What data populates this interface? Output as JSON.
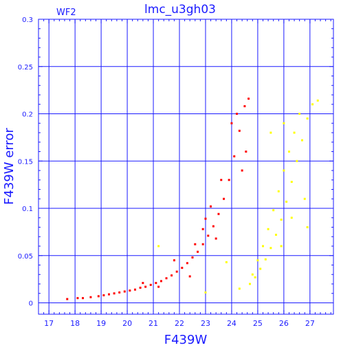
{
  "chart_data": {
    "type": "scatter",
    "title": "lmc_u3gh03",
    "panel_label": "WF2",
    "xlabel": "F439W",
    "ylabel": "F439W error",
    "xlim": [
      16.6,
      27.9
    ],
    "ylim": [
      -0.012,
      0.3
    ],
    "xticks": [
      17,
      18,
      19,
      20,
      21,
      22,
      23,
      24,
      25,
      26,
      27
    ],
    "xtick_labels": [
      "17",
      "18",
      "19",
      "20",
      "21",
      "22",
      "23",
      "24",
      "25",
      "26",
      "27"
    ],
    "yticks": [
      0,
      0.05,
      0.1,
      0.15,
      0.2,
      0.25,
      0.3
    ],
    "ytick_labels": [
      "0",
      "0.05",
      "0.1",
      "0.15",
      "0.2",
      "0.25",
      "0.3"
    ],
    "grid": true,
    "legend": "none",
    "colors": {
      "frame": "#1a1aff",
      "grid": "#1a1aff",
      "red_series": "#ff0000",
      "yellow_series": "#ffff00"
    },
    "series": [
      {
        "color_key": "red_series",
        "points": [
          [
            17.7,
            0.004
          ],
          [
            18.1,
            0.005
          ],
          [
            18.3,
            0.005
          ],
          [
            18.6,
            0.006
          ],
          [
            18.9,
            0.007
          ],
          [
            19.1,
            0.008
          ],
          [
            19.3,
            0.009
          ],
          [
            19.5,
            0.01
          ],
          [
            19.7,
            0.011
          ],
          [
            19.9,
            0.012
          ],
          [
            20.1,
            0.013
          ],
          [
            20.3,
            0.014
          ],
          [
            20.5,
            0.016
          ],
          [
            20.7,
            0.017
          ],
          [
            20.9,
            0.019
          ],
          [
            21.1,
            0.021
          ],
          [
            21.3,
            0.023
          ],
          [
            21.5,
            0.026
          ],
          [
            21.7,
            0.029
          ],
          [
            21.9,
            0.033
          ],
          [
            22.1,
            0.037
          ],
          [
            22.3,
            0.042
          ],
          [
            22.5,
            0.048
          ],
          [
            22.7,
            0.054
          ],
          [
            22.9,
            0.062
          ],
          [
            23.1,
            0.071
          ],
          [
            23.3,
            0.081
          ],
          [
            23.5,
            0.094
          ],
          [
            23.7,
            0.11
          ],
          [
            23.9,
            0.13
          ],
          [
            24.1,
            0.155
          ],
          [
            24.3,
            0.182
          ],
          [
            24.5,
            0.208
          ],
          [
            24.65,
            0.216
          ],
          [
            21.8,
            0.045
          ],
          [
            22.6,
            0.062
          ],
          [
            23.0,
            0.089
          ],
          [
            23.2,
            0.102
          ],
          [
            22.9,
            0.078
          ],
          [
            24.0,
            0.19
          ],
          [
            24.2,
            0.2
          ],
          [
            23.6,
            0.13
          ],
          [
            22.4,
            0.028
          ],
          [
            21.2,
            0.017
          ],
          [
            20.6,
            0.021
          ],
          [
            23.4,
            0.068
          ],
          [
            24.4,
            0.14
          ],
          [
            24.55,
            0.16
          ]
        ]
      },
      {
        "color_key": "yellow_series",
        "points": [
          [
            24.7,
            0.02
          ],
          [
            24.9,
            0.027
          ],
          [
            25.1,
            0.036
          ],
          [
            25.3,
            0.046
          ],
          [
            25.5,
            0.058
          ],
          [
            25.7,
            0.072
          ],
          [
            25.9,
            0.088
          ],
          [
            26.1,
            0.107
          ],
          [
            26.3,
            0.128
          ],
          [
            26.5,
            0.15
          ],
          [
            26.7,
            0.172
          ],
          [
            26.9,
            0.195
          ],
          [
            27.1,
            0.21
          ],
          [
            27.3,
            0.214
          ],
          [
            25.2,
            0.06
          ],
          [
            25.4,
            0.078
          ],
          [
            25.6,
            0.098
          ],
          [
            25.8,
            0.118
          ],
          [
            26.0,
            0.14
          ],
          [
            26.2,
            0.16
          ],
          [
            26.4,
            0.18
          ],
          [
            26.6,
            0.2
          ],
          [
            25.0,
            0.045
          ],
          [
            24.8,
            0.03
          ],
          [
            21.2,
            0.06
          ],
          [
            23.8,
            0.043
          ],
          [
            25.5,
            0.18
          ],
          [
            26.0,
            0.19
          ],
          [
            24.3,
            0.015
          ],
          [
            23.0,
            0.011
          ],
          [
            26.8,
            0.11
          ],
          [
            26.9,
            0.08
          ],
          [
            25.9,
            0.06
          ],
          [
            26.3,
            0.09
          ]
        ]
      }
    ]
  }
}
